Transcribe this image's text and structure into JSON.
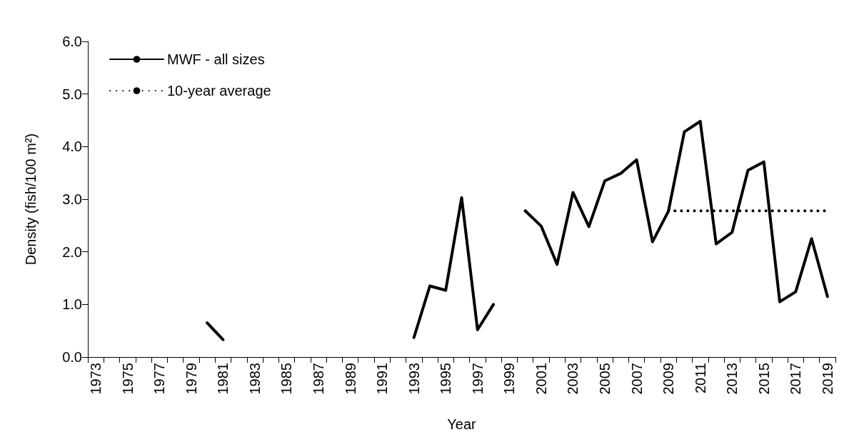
{
  "chart_data": {
    "type": "line",
    "xlabel": "Year",
    "ylabel": "Density (fish/100 m²)",
    "categories": [
      "1973",
      null,
      "1975",
      null,
      "1977",
      null,
      "1979",
      null,
      "1981",
      null,
      "1983",
      null,
      "1985",
      null,
      "1987",
      null,
      "1989",
      null,
      "1991",
      null,
      "1993",
      null,
      "1995",
      null,
      "1997",
      null,
      "1999",
      null,
      "2001",
      null,
      "2003",
      null,
      "2005",
      null,
      "2007",
      null,
      "2009",
      null,
      "2011",
      null,
      "2013",
      null,
      "2015",
      null,
      "2017",
      null,
      "2019"
    ],
    "series": [
      {
        "name": "MWF - all sizes",
        "color": "#000000",
        "line_style": "solid",
        "values": [
          null,
          null,
          null,
          null,
          null,
          null,
          null,
          0.65,
          0.33,
          null,
          null,
          null,
          null,
          null,
          null,
          null,
          null,
          null,
          null,
          null,
          0.37,
          1.35,
          1.27,
          3.03,
          0.52,
          1.0,
          null,
          2.78,
          2.49,
          1.76,
          3.13,
          2.48,
          3.35,
          3.49,
          3.75,
          2.19,
          2.77,
          4.28,
          4.48,
          2.15,
          2.37,
          3.55,
          3.71,
          1.05,
          1.24,
          2.25,
          1.15
        ]
      },
      {
        "name": "10-year average",
        "color": "#000000",
        "line_style": "dotted",
        "values": [
          null,
          null,
          null,
          null,
          null,
          null,
          null,
          null,
          null,
          null,
          null,
          null,
          null,
          null,
          null,
          null,
          null,
          null,
          null,
          null,
          null,
          null,
          null,
          null,
          null,
          null,
          null,
          null,
          null,
          null,
          null,
          null,
          null,
          null,
          null,
          null,
          2.78,
          2.78,
          2.78,
          2.78,
          2.78,
          2.78,
          2.78,
          2.78,
          2.78,
          2.78,
          2.78
        ]
      }
    ],
    "ylim": [
      0,
      6
    ],
    "yticks": [
      {
        "value": 0,
        "label": "0.0"
      },
      {
        "value": 1,
        "label": "1.0"
      },
      {
        "value": 2,
        "label": "2.0"
      },
      {
        "value": 3,
        "label": "3.0"
      },
      {
        "value": 4,
        "label": "4.0"
      },
      {
        "value": 5,
        "label": "5.0"
      },
      {
        "value": 6,
        "label": "6.0"
      }
    ],
    "grid": false,
    "legend": "top left"
  }
}
